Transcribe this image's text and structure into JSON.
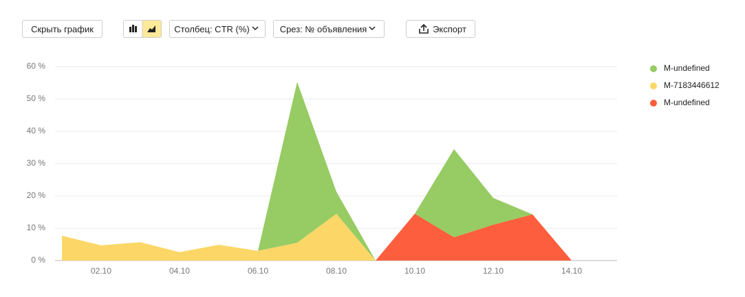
{
  "toolbar": {
    "hide_chart": "Скрыть график",
    "column": "Столбец: CTR (%)",
    "slice": "Срез: № объявления",
    "export": "Экспорт"
  },
  "chart_data": {
    "type": "area",
    "stacked": true,
    "categories": [
      null,
      "02.10",
      null,
      "04.10",
      null,
      "06.10",
      null,
      "08.10",
      null,
      "10.10",
      null,
      "12.10",
      null,
      "14.10"
    ],
    "series": [
      {
        "name": "M-undefined",
        "color": "#97cb63",
        "values": [
          null,
          null,
          null,
          null,
          null,
          0,
          49.8,
          6.8,
          0,
          0,
          27.3,
          8.3,
          0,
          0
        ]
      },
      {
        "name": "M-7183446612",
        "color": "#fcd767",
        "values": [
          7.7,
          4.7,
          5.7,
          2.6,
          4.9,
          3.0,
          5.5,
          14.5,
          0,
          null,
          null,
          null,
          null,
          null
        ]
      },
      {
        "name": "M-undefined",
        "color": "#fc5e3e",
        "values": [
          null,
          null,
          null,
          null,
          null,
          null,
          null,
          null,
          0,
          14.5,
          7.2,
          11.1,
          14.3,
          0
        ]
      }
    ],
    "ylim": [
      0,
      60
    ],
    "yticks": [
      {
        "value": 0,
        "label": "0 %"
      },
      {
        "value": 10,
        "label": "10 %"
      },
      {
        "value": 20,
        "label": "20 %"
      },
      {
        "value": 30,
        "label": "30 %"
      },
      {
        "value": 40,
        "label": "40 %"
      },
      {
        "value": 50,
        "label": "50 %"
      },
      {
        "value": 60,
        "label": "60 %"
      }
    ],
    "grid": true
  }
}
